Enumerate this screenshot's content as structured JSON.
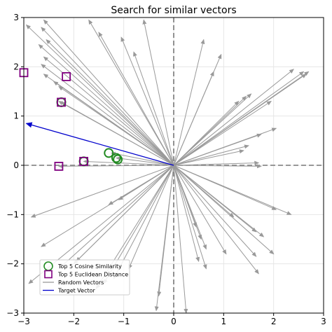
{
  "chart_data": {
    "type": "scatter",
    "title": "Search for similar vectors",
    "xlabel": "",
    "ylabel": "",
    "xlim": [
      -3,
      3
    ],
    "ylim": [
      -3,
      3
    ],
    "xticks": [
      -3,
      -2,
      -1,
      0,
      1,
      2,
      3
    ],
    "yticks": [
      -3,
      -2,
      -1,
      0,
      1,
      2,
      3
    ],
    "xtick_labels": [
      "−3",
      "−2",
      "−1",
      "0",
      "1",
      "2",
      "3"
    ],
    "ytick_labels": [
      "−3",
      "−2",
      "−1",
      "0",
      "1",
      "2",
      "3"
    ],
    "grid": true,
    "legend_position": "lower-left",
    "colors": {
      "random": "#999999",
      "target": "#0000cc",
      "cosine": "#228b22",
      "euclidean": "#800080",
      "axis_lines": "#777777"
    },
    "random_vectors": [
      [
        -2.95,
        2.85
      ],
      [
        -2.6,
        2.95
      ],
      [
        -2.65,
        2.8
      ],
      [
        -2.55,
        2.55
      ],
      [
        -2.7,
        2.45
      ],
      [
        -2.6,
        2.2
      ],
      [
        -2.65,
        2.05
      ],
      [
        -2.6,
        1.85
      ],
      [
        -2.4,
        1.7
      ],
      [
        -2.3,
        1.6
      ],
      [
        -2.25,
        1.28
      ],
      [
        -2.3,
        1.3
      ],
      [
        -1.7,
        2.95
      ],
      [
        -1.5,
        2.7
      ],
      [
        -0.6,
        2.95
      ],
      [
        -1.05,
        2.6
      ],
      [
        -0.8,
        2.3
      ],
      [
        0.6,
        2.55
      ],
      [
        0.95,
        2.25
      ],
      [
        0.8,
        1.9
      ],
      [
        1.55,
        1.45
      ],
      [
        1.45,
        1.4
      ],
      [
        1.3,
        1.3
      ],
      [
        1.95,
        1.3
      ],
      [
        2.7,
        1.9
      ],
      [
        2.65,
        1.85
      ],
      [
        2.4,
        1.95
      ],
      [
        2.6,
        1.9
      ],
      [
        2.05,
        0.75
      ],
      [
        1.75,
        0.63
      ],
      [
        1.5,
        0.4
      ],
      [
        1.4,
        0.3
      ],
      [
        1.7,
        0.05
      ],
      [
        1.75,
        -0.02
      ],
      [
        -1.8,
        0.08
      ],
      [
        -1.25,
        0.25
      ],
      [
        -1.15,
        0.15
      ],
      [
        -2.3,
        -0.02
      ],
      [
        -2.85,
        -1.05
      ],
      [
        -1.3,
        -0.8
      ],
      [
        -1.1,
        -0.7
      ],
      [
        -2.65,
        -1.65
      ],
      [
        -2.9,
        -2.4
      ],
      [
        -2.3,
        -2.1
      ],
      [
        -2.0,
        -2.0
      ],
      [
        -1.95,
        -1.95
      ],
      [
        -1.55,
        -2.5
      ],
      [
        -1.4,
        -2.4
      ],
      [
        -1.2,
        -2.3
      ],
      [
        -0.9,
        -2.1
      ],
      [
        -0.35,
        -2.95
      ],
      [
        -0.3,
        -2.65
      ],
      [
        0.25,
        -3.0
      ],
      [
        0.5,
        -1.95
      ],
      [
        0.65,
        -2.1
      ],
      [
        0.65,
        -1.7
      ],
      [
        0.45,
        -1.25
      ],
      [
        0.55,
        -1.5
      ],
      [
        1.05,
        -1.8
      ],
      [
        1.2,
        -1.05
      ],
      [
        1.65,
        -1.35
      ],
      [
        1.65,
        -1.85
      ],
      [
        1.7,
        -2.2
      ],
      [
        1.8,
        -1.45
      ],
      [
        2.0,
        -1.8
      ],
      [
        2.05,
        -0.9
      ],
      [
        2.35,
        -1.0
      ]
    ],
    "target_vector": [
      -2.95,
      0.85
    ],
    "top5_cosine": [
      [
        -2.25,
        1.28
      ],
      [
        -1.8,
        0.08
      ],
      [
        -1.3,
        0.25
      ],
      [
        -1.15,
        0.15
      ],
      [
        -1.12,
        0.12
      ]
    ],
    "top5_euclidean": [
      [
        -3.0,
        1.88
      ],
      [
        -2.15,
        1.8
      ],
      [
        -2.25,
        1.28
      ],
      [
        -1.8,
        0.08
      ],
      [
        -2.3,
        -0.02
      ]
    ],
    "legend": [
      {
        "label": "Top 5 Cosine Similarity",
        "marker": "circle"
      },
      {
        "label": "Top 5 Euclidean Distance",
        "marker": "square"
      },
      {
        "label": "Random Vectors",
        "marker": "line-random"
      },
      {
        "label": "Target Vector",
        "marker": "line-target"
      }
    ]
  }
}
